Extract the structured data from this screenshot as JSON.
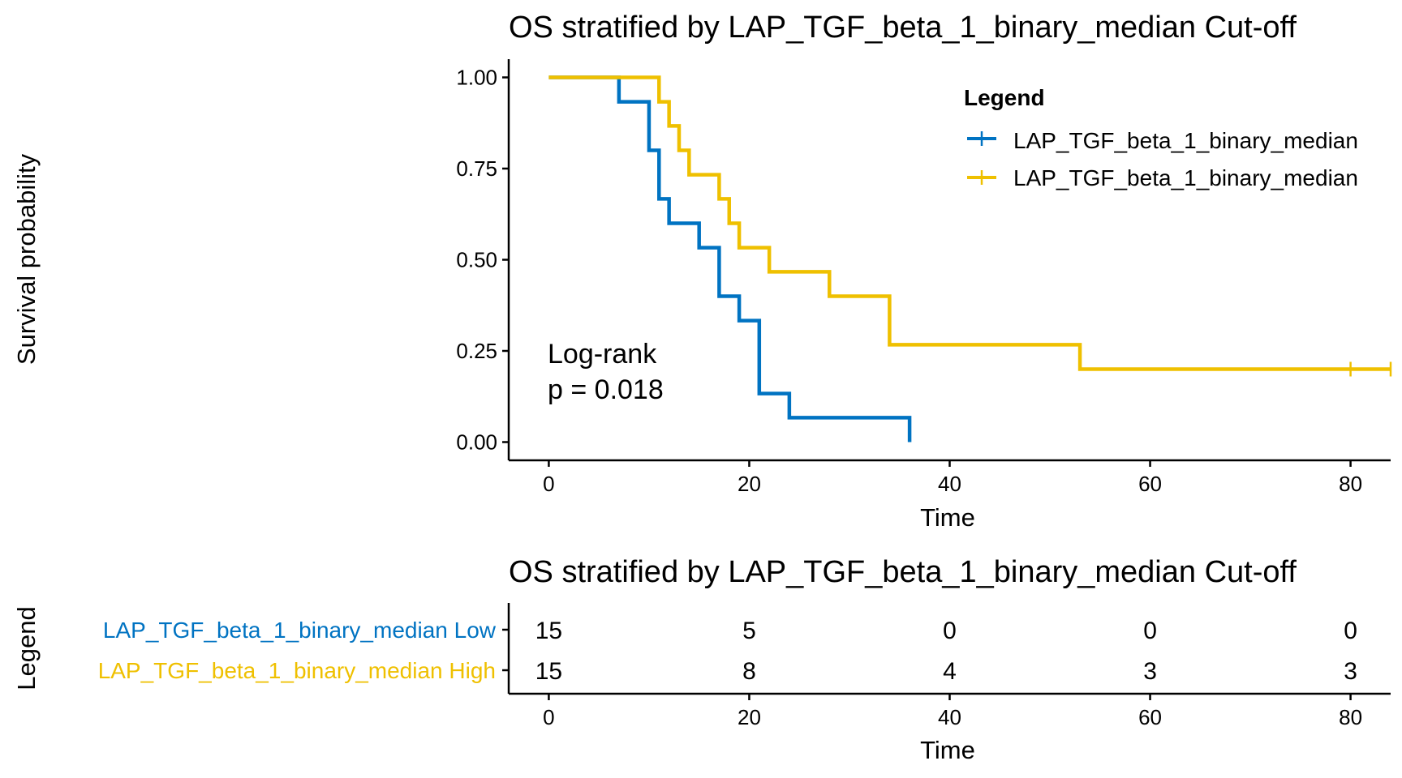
{
  "chart_data": [
    {
      "type": "line",
      "subtype": "kaplan-meier step",
      "title": "OS stratified by LAP_TGF_beta_1_binary_median Cut-off",
      "xlabel": "Time",
      "ylabel": "Survival probability",
      "xlim": [
        -4,
        84
      ],
      "ylim": [
        -0.05,
        1.05
      ],
      "x_ticks": [
        0,
        20,
        40,
        60,
        80
      ],
      "x_tick_labels": [
        "0",
        "20",
        "40",
        "60",
        "80"
      ],
      "y_ticks": [
        0,
        0.25,
        0.5,
        0.75,
        1.0
      ],
      "y_tick_labels": [
        "0.00",
        "0.25",
        "0.50",
        "0.75",
        "1.00"
      ],
      "grid": false,
      "legend": {
        "title": "Legend",
        "placement": "top-right",
        "entries": [
          "LAP_TGF_beta_1_binary_median",
          "LAP_TGF_beta_1_binary_median"
        ]
      },
      "annotation": {
        "line1": "Log-rank",
        "line2": "p = 0.018"
      },
      "series": [
        {
          "name": "LAP_TGF_beta_1_binary_median Low",
          "color": "#0073C2",
          "steps": [
            [
              0,
              1.0
            ],
            [
              7,
              0.933
            ],
            [
              10,
              0.8
            ],
            [
              11,
              0.667
            ],
            [
              12,
              0.6
            ],
            [
              15,
              0.533
            ],
            [
              17,
              0.4
            ],
            [
              19,
              0.333
            ],
            [
              21,
              0.133
            ],
            [
              24,
              0.067
            ],
            [
              36,
              0.0
            ]
          ],
          "end_time": 36,
          "censored": []
        },
        {
          "name": "LAP_TGF_beta_1_binary_median High",
          "color": "#EFC000",
          "steps": [
            [
              0,
              1.0
            ],
            [
              11,
              0.933
            ],
            [
              12,
              0.867
            ],
            [
              13,
              0.8
            ],
            [
              14,
              0.733
            ],
            [
              17,
              0.667
            ],
            [
              18,
              0.6
            ],
            [
              19,
              0.533
            ],
            [
              22,
              0.467
            ],
            [
              28,
              0.4
            ],
            [
              34,
              0.267
            ],
            [
              53,
              0.2
            ]
          ],
          "end_time": 84,
          "censored": [
            [
              80,
              0.2
            ],
            [
              84,
              0.2
            ]
          ]
        }
      ]
    },
    {
      "type": "table",
      "subtype": "risk table",
      "title": "OS stratified by LAP_TGF_beta_1_binary_median Cut-off",
      "xlabel": "Time",
      "ylabel": "Legend",
      "xlim": [
        -4,
        84
      ],
      "x_ticks": [
        0,
        20,
        40,
        60,
        80
      ],
      "x_tick_labels": [
        "0",
        "20",
        "40",
        "60",
        "80"
      ],
      "rows": [
        {
          "label": "LAP_TGF_beta_1_binary_median Low",
          "color": "#0073C2",
          "values": [
            "15",
            "5",
            "0",
            "0",
            "0"
          ]
        },
        {
          "label": "LAP_TGF_beta_1_binary_median High",
          "color": "#EFC000",
          "values": [
            "15",
            "8",
            "4",
            "3",
            "3"
          ]
        }
      ]
    }
  ]
}
